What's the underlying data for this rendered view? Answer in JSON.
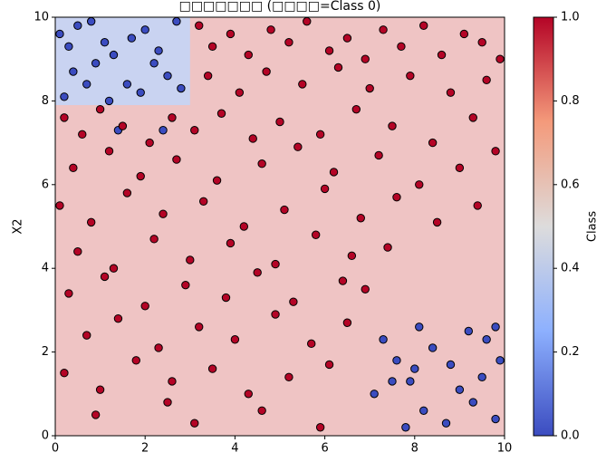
{
  "chart_data": {
    "type": "scatter",
    "title": "□□□□□□□ (□□□□=Class 0)",
    "y_label": "X2",
    "xlim": [
      0,
      10
    ],
    "ylim": [
      0,
      10
    ],
    "xticks": [
      0,
      2,
      4,
      6,
      8,
      10
    ],
    "yticks": [
      0,
      2,
      4,
      6,
      8,
      10
    ],
    "background_color": "#efc4c4",
    "regions": [
      {
        "color": "#c9d3f1",
        "xlim": [
          0,
          3
        ],
        "ylim": [
          7.9,
          10
        ]
      }
    ],
    "series": [
      {
        "color": "#3b4cc0",
        "x": [
          0.1,
          0.3,
          0.5,
          0.8,
          1.1,
          0.4,
          0.9,
          1.3,
          1.6,
          2.0,
          2.3,
          2.7,
          2.5,
          1.9,
          0.2,
          1.2,
          2.8,
          0.7,
          1.7,
          2.2,
          1.4,
          2.4,
          7.3,
          7.6,
          7.9,
          8.1,
          8.4,
          8.8,
          9.2,
          9.5,
          9.8,
          9.9,
          8.2,
          8.7,
          9.3,
          9.8,
          7.8,
          7.5,
          9.0,
          8.0,
          9.6,
          7.1
        ],
        "y": [
          9.6,
          9.3,
          9.8,
          9.9,
          9.4,
          8.7,
          8.9,
          9.1,
          8.4,
          9.7,
          9.2,
          9.9,
          8.6,
          8.2,
          8.1,
          8.0,
          8.3,
          8.4,
          9.5,
          8.9,
          7.3,
          7.3,
          2.3,
          1.8,
          1.3,
          2.6,
          2.1,
          1.7,
          2.5,
          1.4,
          2.6,
          1.8,
          0.6,
          0.3,
          0.8,
          0.4,
          0.2,
          1.3,
          1.1,
          1.6,
          2.3,
          1.0
        ]
      },
      {
        "color": "#b40426",
        "x": [
          3.2,
          3.5,
          3.9,
          4.3,
          4.8,
          5.2,
          5.6,
          6.1,
          6.5,
          6.9,
          7.3,
          7.7,
          8.2,
          8.6,
          9.1,
          9.5,
          9.9,
          3.4,
          4.1,
          4.7,
          5.5,
          6.3,
          7.0,
          7.9,
          8.8,
          9.6,
          0.2,
          0.6,
          1.0,
          1.5,
          2.1,
          2.6,
          3.1,
          3.7,
          4.4,
          5.0,
          5.9,
          6.7,
          7.5,
          8.4,
          9.3,
          0.4,
          1.2,
          1.9,
          2.7,
          3.6,
          4.6,
          5.4,
          6.2,
          7.2,
          8.1,
          9.0,
          9.8,
          0.1,
          0.8,
          1.6,
          2.4,
          3.3,
          4.2,
          5.1,
          6.0,
          6.8,
          7.6,
          8.5,
          9.4,
          0.5,
          1.3,
          2.2,
          3.0,
          3.9,
          4.9,
          5.8,
          6.6,
          7.4,
          0.3,
          1.1,
          2.0,
          2.9,
          3.8,
          4.5,
          5.3,
          6.4,
          6.9,
          0.7,
          1.4,
          2.3,
          3.2,
          4.0,
          4.9,
          5.7,
          6.5,
          0.2,
          1.0,
          1.8,
          2.6,
          3.5,
          4.3,
          5.2,
          6.1,
          3.1,
          4.6,
          5.9,
          0.9,
          2.5
        ],
        "y": [
          9.8,
          9.3,
          9.6,
          9.1,
          9.7,
          9.4,
          9.9,
          9.2,
          9.5,
          9.0,
          9.7,
          9.3,
          9.8,
          9.1,
          9.6,
          9.4,
          9.0,
          8.6,
          8.2,
          8.7,
          8.4,
          8.8,
          8.3,
          8.6,
          8.2,
          8.5,
          7.6,
          7.2,
          7.8,
          7.4,
          7.0,
          7.6,
          7.3,
          7.7,
          7.1,
          7.5,
          7.2,
          7.8,
          7.4,
          7.0,
          7.6,
          6.4,
          6.8,
          6.2,
          6.6,
          6.1,
          6.5,
          6.9,
          6.3,
          6.7,
          6.0,
          6.4,
          6.8,
          5.5,
          5.1,
          5.8,
          5.3,
          5.6,
          5.0,
          5.4,
          5.9,
          5.2,
          5.7,
          5.1,
          5.5,
          4.4,
          4.0,
          4.7,
          4.2,
          4.6,
          4.1,
          4.8,
          4.3,
          4.5,
          3.4,
          3.8,
          3.1,
          3.6,
          3.3,
          3.9,
          3.2,
          3.7,
          3.5,
          2.4,
          2.8,
          2.1,
          2.6,
          2.3,
          2.9,
          2.2,
          2.7,
          1.5,
          1.1,
          1.8,
          1.3,
          1.6,
          1.0,
          1.4,
          1.7,
          0.3,
          0.6,
          0.2,
          0.5,
          0.8
        ]
      }
    ],
    "colorbar": {
      "label": "Class",
      "lim": [
        0,
        1
      ],
      "ticks": [
        {
          "value": 0,
          "label": "0.0"
        },
        {
          "value": 0.2,
          "label": "0.2"
        },
        {
          "value": 0.4,
          "label": "0.4"
        },
        {
          "value": 0.6,
          "label": "0.6"
        },
        {
          "value": 0.8,
          "label": "0.8"
        },
        {
          "value": 1,
          "label": "1.0"
        }
      ]
    }
  }
}
